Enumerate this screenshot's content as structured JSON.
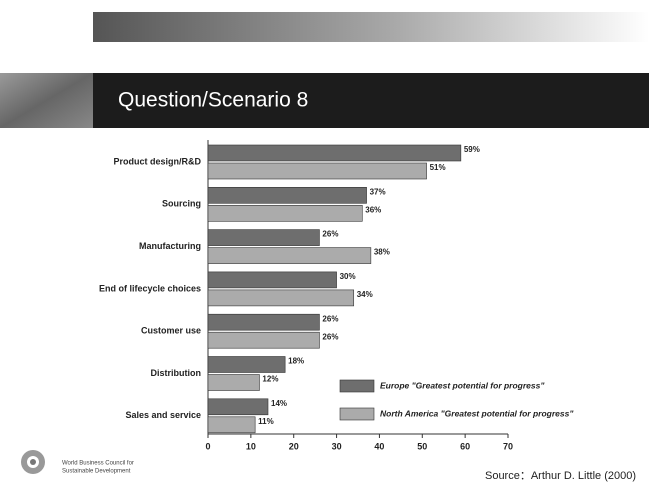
{
  "slide": {
    "title": "Question/Scenario 8",
    "org_lines": [
      "World Business Council for",
      "Sustainable Development"
    ],
    "source": "Source：Arthur D. Little (2000)"
  },
  "chart_data": {
    "type": "bar",
    "orientation": "horizontal",
    "categories": [
      "Product design/R&D",
      "Sourcing",
      "Manufacturing",
      "End of lifecycle choices",
      "Customer use",
      "Distribution",
      "Sales and service"
    ],
    "series": [
      {
        "name": "Europe \"Greatest potential for progress\"",
        "color": "#6e6e6e",
        "values": [
          59,
          37,
          26,
          30,
          26,
          18,
          14
        ],
        "value_labels": [
          "59%",
          "37%",
          "26%",
          "30%",
          "26%",
          "18%",
          "14%"
        ]
      },
      {
        "name": "North America \"Greatest potential for progress\"",
        "color": "#ababab",
        "values": [
          51,
          36,
          38,
          34,
          26,
          12,
          11
        ],
        "value_labels": [
          "51%",
          "36%",
          "38%",
          "34%",
          "26%",
          "12%",
          "11%"
        ]
      }
    ],
    "xlim": [
      0,
      70
    ],
    "xticks": [
      0,
      10,
      20,
      30,
      40,
      50,
      60,
      70
    ]
  }
}
